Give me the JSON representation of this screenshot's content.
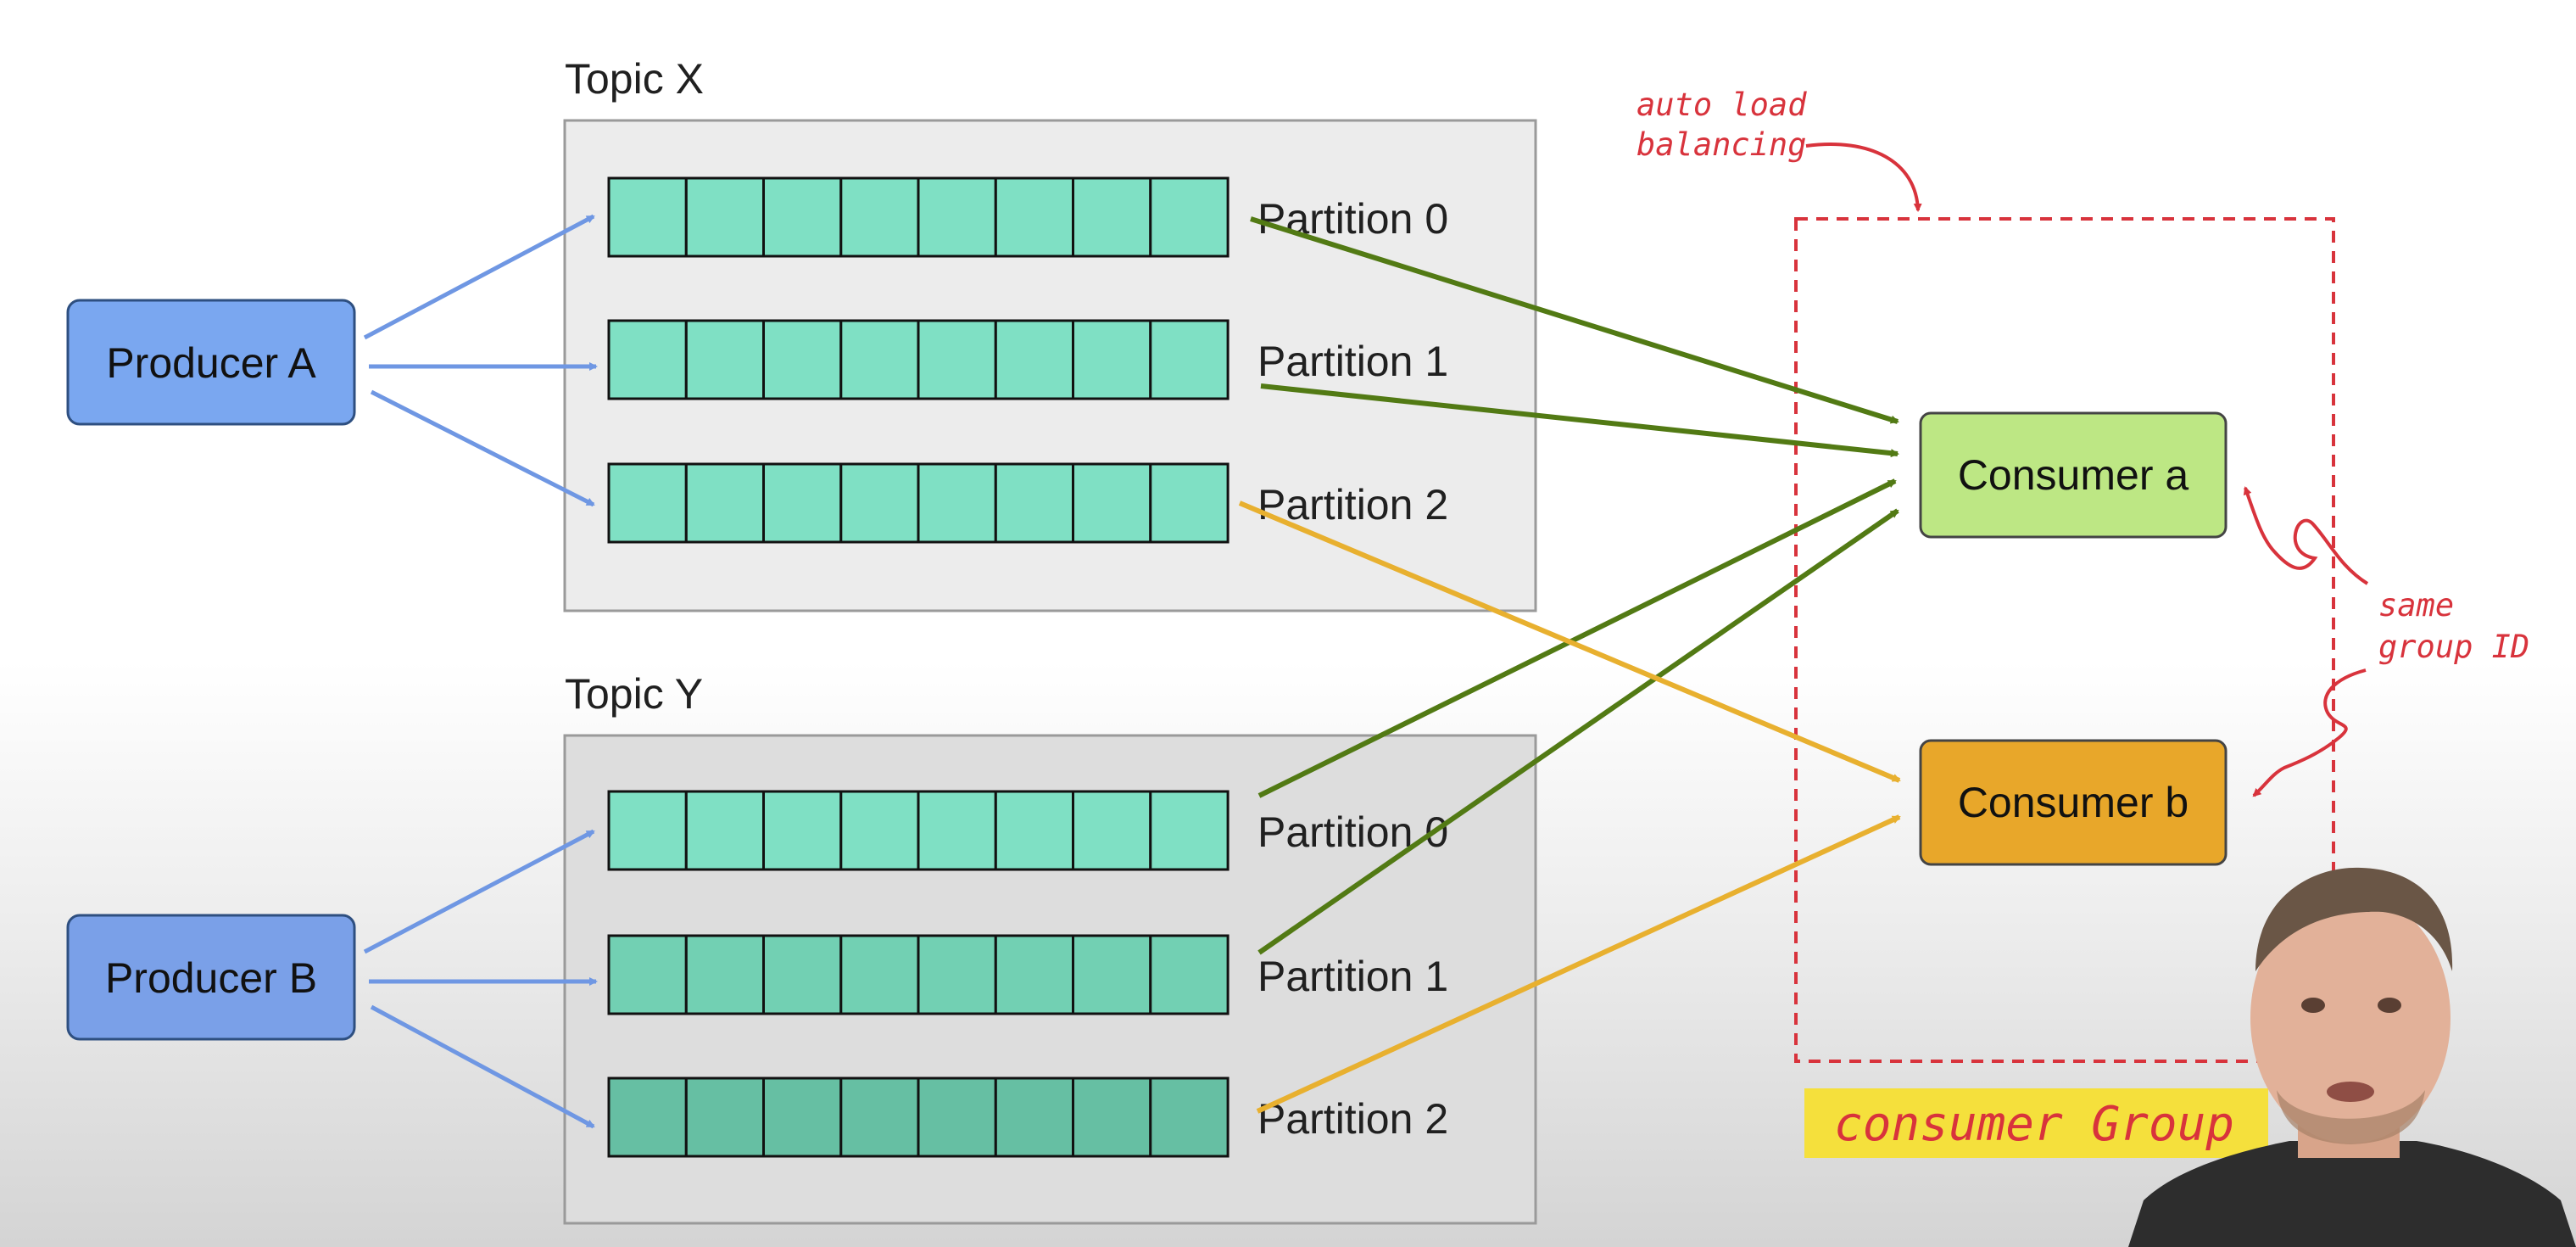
{
  "topics": [
    {
      "title": "Topic X",
      "partitions": [
        "Partition 0",
        "Partition 1",
        "Partition 2"
      ]
    },
    {
      "title": "Topic Y",
      "partitions": [
        "Partition 0",
        "Partition 1",
        "Partition 2"
      ]
    }
  ],
  "producers": [
    "Producer A",
    "Producer B"
  ],
  "consumers": [
    "Consumer a",
    "Consumer b"
  ],
  "cells_per_partition": 8,
  "annotations": {
    "load_balancing": [
      "auto load",
      "balancing"
    ],
    "group_id": [
      "same",
      "group ID"
    ],
    "group_label": "consumer Group"
  },
  "colors": {
    "producer_fill": "#7aa7f0",
    "partition_cell_fill": "#7fe0c4",
    "partition_cell_fill_dark": "#66bfa3",
    "topic_box_fill": "#ececec",
    "consumer_a_fill": "#bde784",
    "consumer_b_fill": "#e8a72a",
    "producer_arrow": "#6f97e3",
    "consumer_a_arrow": "#527a14",
    "consumer_b_arrow": "#e8b02f",
    "annotation": "#d8333c",
    "group_label_bg": "#f5e03c"
  }
}
